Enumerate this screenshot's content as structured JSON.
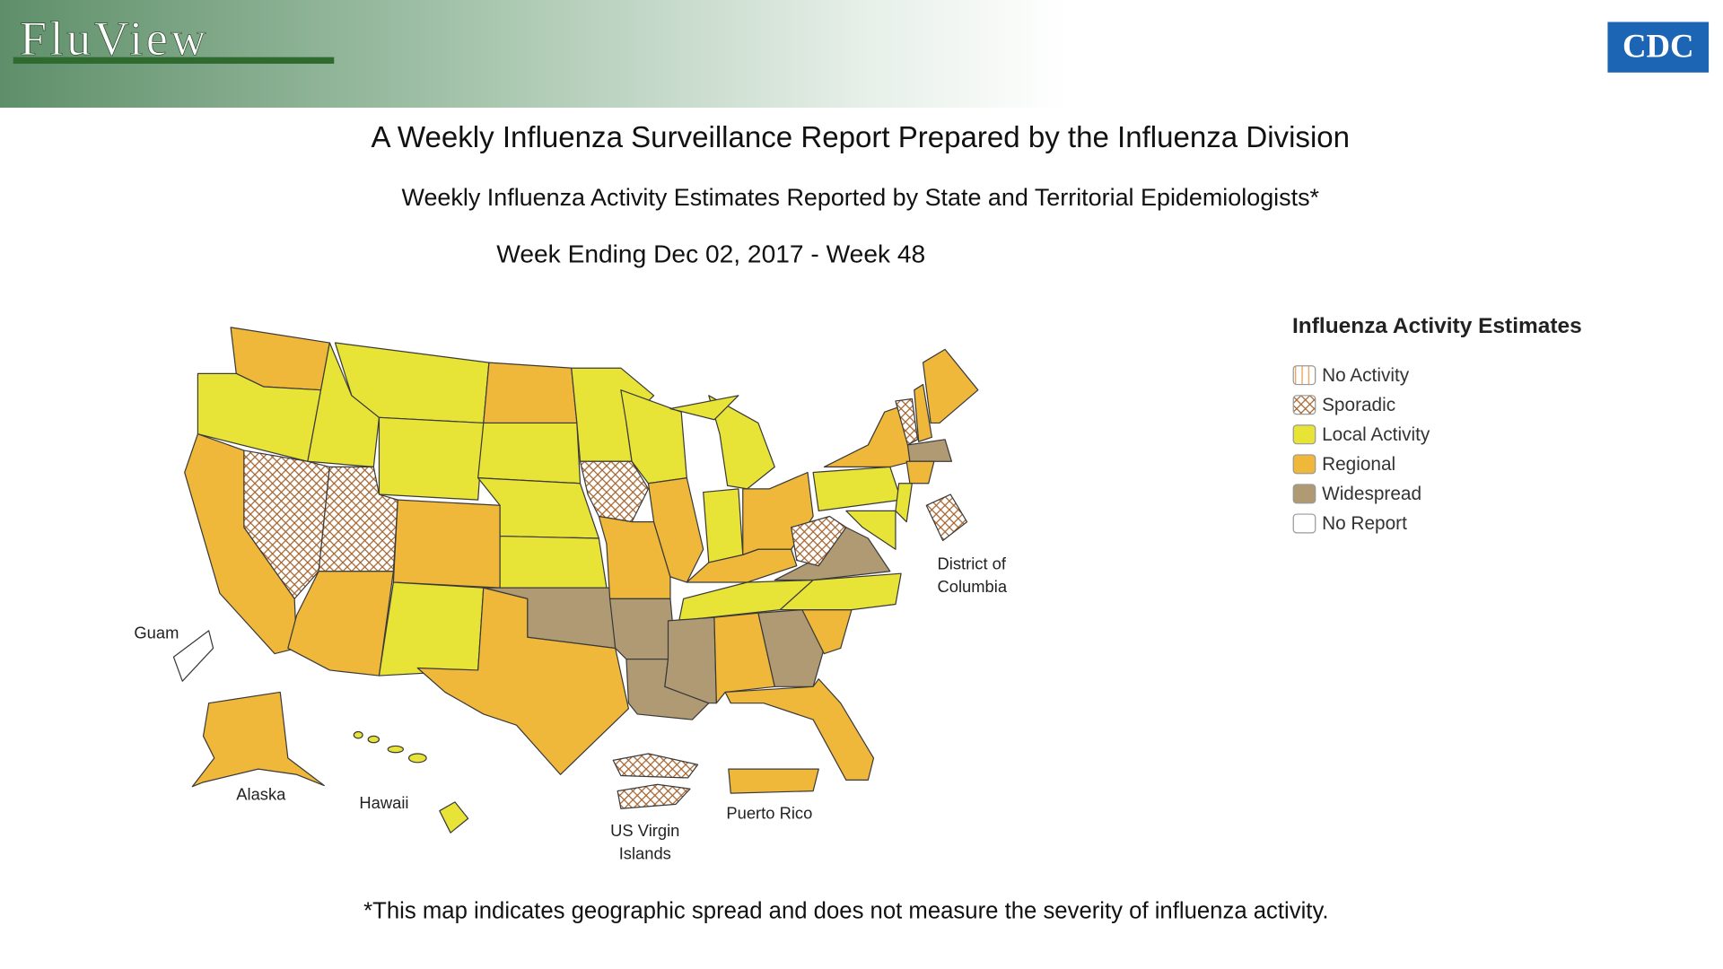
{
  "header": {
    "logo": "FluView",
    "agency": "CDC"
  },
  "title": "A Weekly Influenza Surveillance Report Prepared by the Influenza Division",
  "subtitle": "Weekly Influenza Activity Estimates Reported by State and Territorial Epidemiologists*",
  "week": "Week Ending Dec 02, 2017 - Week 48",
  "legend": {
    "title": "Influenza Activity Estimates",
    "items": [
      "No Activity",
      "Sporadic",
      "Local Activity",
      "Regional",
      "Widespread",
      "No Report"
    ]
  },
  "map_labels": {
    "dc": [
      "District of",
      "Columbia"
    ],
    "guam": "Guam",
    "alaska": "Alaska",
    "hawaii": "Hawaii",
    "usvi": [
      "US Virgin",
      "Islands"
    ],
    "puerto_rico": "Puerto Rico"
  },
  "footnote": "*This map indicates geographic spread and does not measure the severity of influenza activity."
}
